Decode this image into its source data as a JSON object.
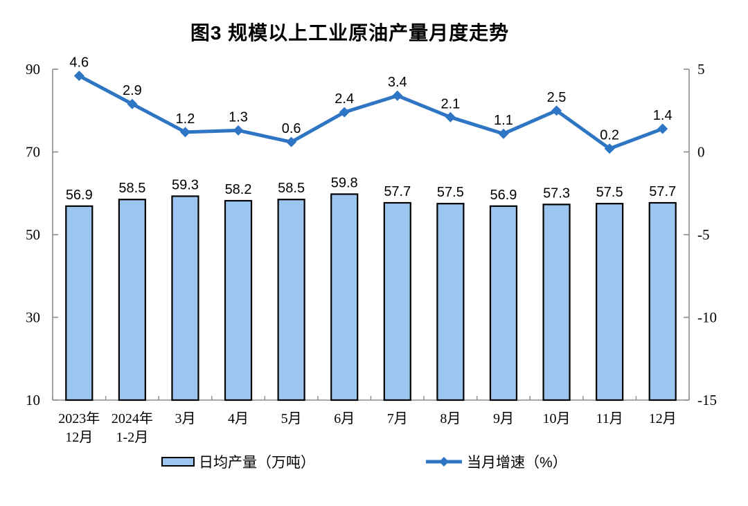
{
  "title": "图3 规模以上工业原油产量月度走势",
  "colors": {
    "bar_fill": "#9CC6F0",
    "bar_border": "#000000",
    "line": "#2E75C3",
    "axis": "#8C8C8C",
    "label": "#000000"
  },
  "legend": {
    "items": [
      {
        "label": "日均产量（万吨）",
        "type": "bar"
      },
      {
        "label": "当月增速（%）",
        "type": "line"
      }
    ],
    "position": "bottom"
  },
  "chart_data": {
    "type": "bar+line",
    "title": "图3 规模以上工业原油产量月度走势",
    "categories": [
      "2023年12月",
      "2024年1-2月",
      "3月",
      "4月",
      "5月",
      "6月",
      "7月",
      "8月",
      "9月",
      "10月",
      "11月",
      "12月"
    ],
    "category_lines": [
      [
        "2023年",
        "12月"
      ],
      [
        "2024年",
        "1-2月"
      ],
      [
        "3月"
      ],
      [
        "4月"
      ],
      [
        "5月"
      ],
      [
        "6月"
      ],
      [
        "7月"
      ],
      [
        "8月"
      ],
      [
        "9月"
      ],
      [
        "10月"
      ],
      [
        "11月"
      ],
      [
        "12月"
      ]
    ],
    "series": [
      {
        "name": "日均产量（万吨）",
        "type": "bar",
        "axis": "left",
        "values": [
          56.9,
          58.5,
          59.3,
          58.2,
          58.5,
          59.8,
          57.7,
          57.5,
          56.9,
          57.3,
          57.5,
          57.7
        ]
      },
      {
        "name": "当月增速（%）",
        "type": "line",
        "axis": "right",
        "values": [
          4.6,
          2.9,
          1.2,
          1.3,
          0.6,
          2.4,
          3.4,
          2.1,
          1.1,
          2.5,
          0.2,
          1.4
        ]
      }
    ],
    "left_axis": {
      "ticks": [
        90,
        70,
        50,
        30,
        10
      ],
      "ylim": [
        10,
        90
      ]
    },
    "right_axis": {
      "ticks": [
        5,
        0,
        -5,
        -10,
        -15
      ],
      "ylim": [
        -15,
        5
      ]
    },
    "grid": false,
    "legend_position": "bottom"
  }
}
